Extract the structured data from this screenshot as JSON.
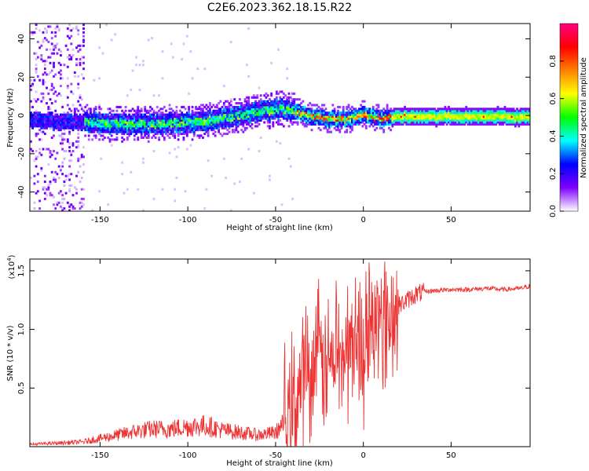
{
  "title": "C2E6.2023.362.18.15.R22",
  "chart_data": [
    {
      "type": "heatmap",
      "xlabel": "Height of straight line (km)",
      "ylabel": "Frequency (Hz)",
      "xlim": [
        -190,
        95
      ],
      "ylim": [
        -50,
        48
      ],
      "xticks": [
        -150,
        -100,
        -50,
        0,
        50
      ],
      "xtick_labels": [
        "-150",
        "-100",
        "-50",
        "0",
        "50"
      ],
      "yticks": [
        -40,
        -20,
        0,
        20,
        40
      ],
      "ytick_labels": [
        "-40",
        "-20",
        "0",
        "20",
        "40"
      ],
      "grid": false,
      "colorbar": {
        "label": "Normalized spectral amplitude",
        "range": [
          0,
          1
        ],
        "ticks": [
          0.0,
          0.2,
          0.4,
          0.6,
          0.8
        ],
        "tick_labels": [
          "0.0",
          "0.2",
          "0.4",
          "0.6",
          "0.8"
        ],
        "colors": [
          "#ffffff",
          "#8000ff",
          "#0000ff",
          "#00ffff",
          "#00ff00",
          "#ffff00",
          "#ff8000",
          "#ff0000",
          "#ff0080"
        ]
      },
      "ridge": {
        "x": [
          -190,
          -160,
          -130,
          -100,
          -80,
          -65,
          -50,
          -40,
          -30,
          -20,
          -10,
          0,
          10,
          20,
          50,
          80,
          95
        ],
        "freq": [
          -3,
          -4,
          -5,
          -4,
          -2,
          1,
          3,
          2,
          -1,
          -2,
          -2,
          0,
          -2,
          -1,
          -1,
          -1,
          -1
        ]
      }
    },
    {
      "type": "line",
      "xlabel": "Height of straight line (km)",
      "ylabel": "SNR (10 * v/v)",
      "y_multiplier_label": "(x10",
      "y_multiplier_exp": "4",
      "xlim": [
        -190,
        95
      ],
      "ylim": [
        0,
        1.6
      ],
      "xticks": [
        -150,
        -100,
        -50,
        0,
        50
      ],
      "xtick_labels": [
        "-150",
        "-100",
        "-50",
        "0",
        "50"
      ],
      "yticks": [
        0.5,
        1.0,
        1.5
      ],
      "ytick_labels": [
        "0.5",
        "1.0",
        "1.5"
      ],
      "grid": false,
      "series": [
        {
          "color": "#ee3333",
          "x": [
            -190,
            -175,
            -160,
            -150,
            -140,
            -130,
            -120,
            -110,
            -100,
            -90,
            -80,
            -70,
            -60,
            -50,
            -45,
            -40,
            -35,
            -30,
            -25,
            -20,
            -15,
            -10,
            -5,
            0,
            5,
            10,
            15,
            20,
            25,
            30,
            35,
            40,
            50,
            60,
            70,
            80,
            90,
            95
          ],
          "y": [
            0.02,
            0.03,
            0.04,
            0.07,
            0.1,
            0.13,
            0.15,
            0.15,
            0.17,
            0.18,
            0.14,
            0.12,
            0.1,
            0.12,
            0.2,
            0.35,
            0.55,
            0.65,
            0.75,
            0.7,
            0.75,
            0.8,
            0.9,
            0.85,
            1.0,
            1.05,
            1.1,
            1.2,
            1.25,
            1.3,
            1.32,
            1.33,
            1.34,
            1.34,
            1.35,
            1.34,
            1.35,
            1.37
          ]
        }
      ]
    }
  ]
}
